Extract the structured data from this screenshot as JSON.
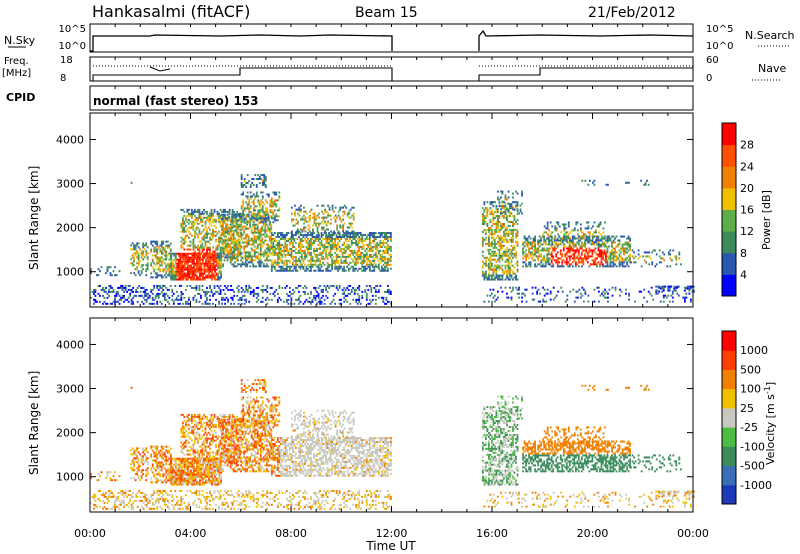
{
  "header": {
    "station": "Hankasalmi (fitACF)",
    "beam": "Beam 15",
    "date": "21/Feb/2012"
  },
  "panels": {
    "nsky_label": "N.Sky",
    "nsky_ticks": [
      "10^5",
      "10^0"
    ],
    "nsearch_label": "N.Search",
    "nsearch_ticks": [
      "10^5",
      "10^0"
    ],
    "freq_label": "Freq.",
    "freq_unit": "[MHz]",
    "freq_ticks": [
      "18",
      "8"
    ],
    "nave_label": "Nave",
    "nave_ticks": [
      "60",
      "0"
    ],
    "cpid_label": "CPID",
    "cpid_text": "normal (fast stereo) 153"
  },
  "chart_data": [
    {
      "type": "heatmap",
      "name": "power",
      "ylabel": "Slant Range [km]",
      "xlabel": "Time UT",
      "yticks": [
        "1000",
        "2000",
        "3000",
        "4000"
      ],
      "ylim": [
        200,
        4600
      ],
      "xticks": [
        "00:00",
        "04:00",
        "08:00",
        "12:00",
        "16:00",
        "20:00",
        "00:00"
      ],
      "xlim": [
        0,
        24
      ],
      "colorbar": {
        "label": "Power [dB]",
        "ticks": [
          "4",
          "8",
          "12",
          "16",
          "20",
          "24",
          "28"
        ],
        "colors": [
          "#0000ff",
          "#2a57b0",
          "#3d8a5a",
          "#5cae48",
          "#f0c000",
          "#f08000",
          "#ff5000",
          "#ff0000"
        ]
      },
      "data_gap_hours": [
        12.0,
        15.6
      ]
    },
    {
      "type": "heatmap",
      "name": "velocity",
      "ylabel": "Slant Range [km]",
      "xlabel": "Time UT",
      "yticks": [
        "1000",
        "2000",
        "3000",
        "4000"
      ],
      "ylim": [
        200,
        4600
      ],
      "xticks": [
        "00:00",
        "04:00",
        "08:00",
        "12:00",
        "16:00",
        "20:00",
        "00:00"
      ],
      "xlim": [
        0,
        24
      ],
      "colorbar": {
        "label": "Velocity [m s",
        "label_sup": "-1",
        "label_end": "]",
        "ticks": [
          "1000",
          "500",
          "100",
          "25",
          "-25",
          "-100",
          "-500",
          "-1000"
        ],
        "colors": [
          "#1e3ab8",
          "#3a6eb8",
          "#3b8c5c",
          "#4ebb44",
          "#c8c8c0",
          "#f0c000",
          "#f08000",
          "#ff4000",
          "#ff0000"
        ]
      },
      "data_gap_hours": [
        12.0,
        15.6
      ]
    }
  ]
}
